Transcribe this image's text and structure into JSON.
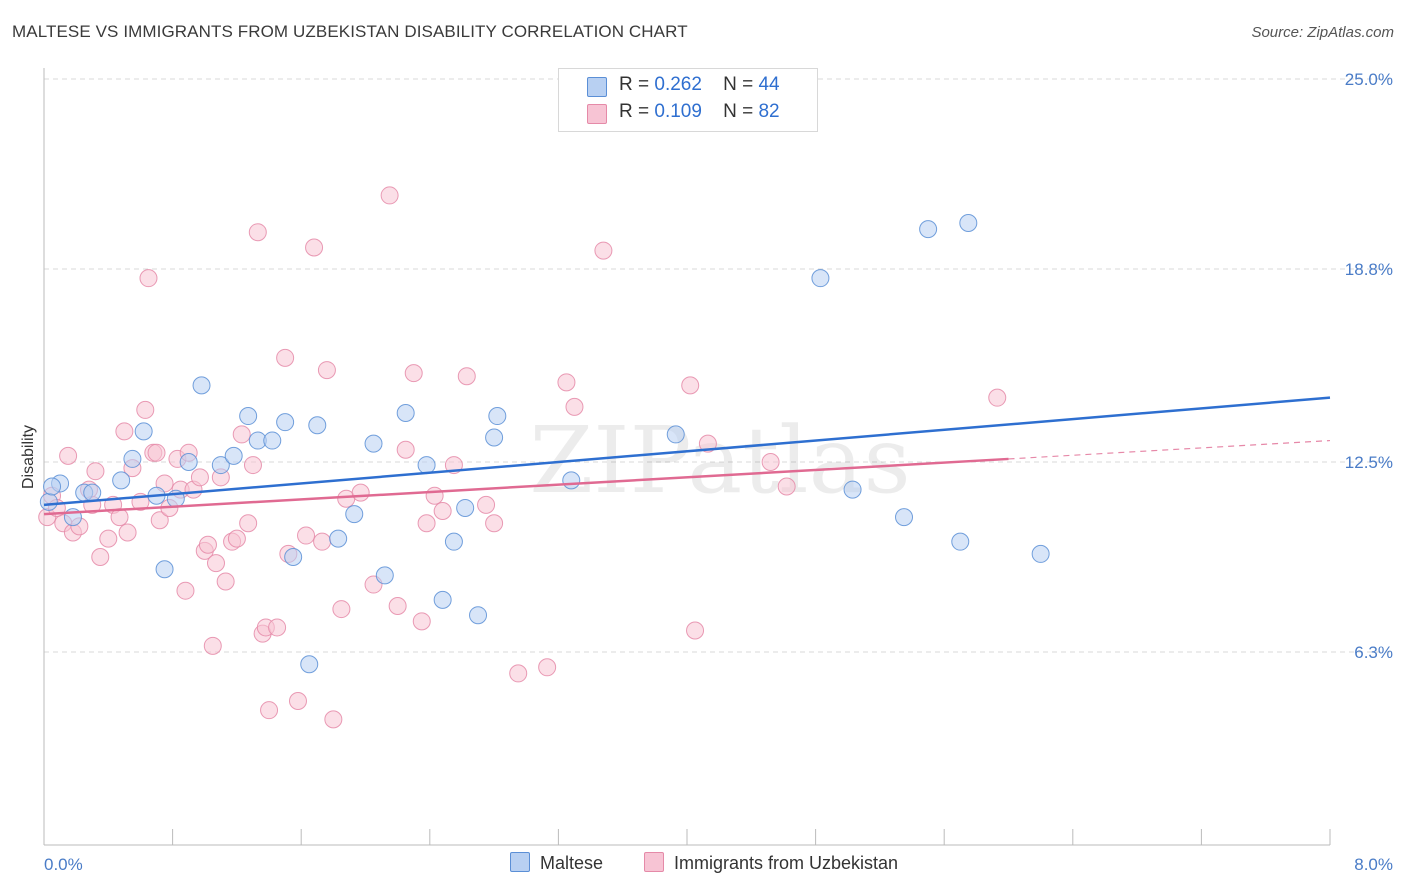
{
  "title": "MALTESE VS IMMIGRANTS FROM UZBEKISTAN DISABILITY CORRELATION CHART",
  "source": "Source: ZipAtlas.com",
  "legend": {
    "r_label": "R =",
    "n_label": "N =",
    "series": [
      {
        "r": "0.262",
        "n": "44"
      },
      {
        "r": "0.109",
        "n": "82"
      }
    ]
  },
  "bottom_legend": [
    "Maltese",
    "Immigrants from Uzbekistan"
  ],
  "watermark": "ZIPatlas",
  "colors": {
    "maltese_fill": "#b8d0f2",
    "maltese_stroke": "#5b8fd6",
    "maltese_line": "#2e6fd0",
    "uzbek_fill": "#f7c4d4",
    "uzbek_stroke": "#e58aa8",
    "uzbek_line": "#e06a92",
    "tick_text": "#4a7cc7",
    "grid": "#d9d9d9"
  },
  "chart_data": {
    "type": "scatter",
    "title": "MALTESE VS IMMIGRANTS FROM UZBEKISTAN DISABILITY CORRELATION CHART",
    "xlabel": "",
    "ylabel": "Disability",
    "xlim": [
      0.0,
      8.0
    ],
    "ylim": [
      0.0,
      25.0
    ],
    "x_tick_labels": [
      "0.0%",
      "8.0%"
    ],
    "y_ticks": [
      6.3,
      12.5,
      18.8,
      25.0
    ],
    "y_tick_labels": [
      "6.3%",
      "12.5%",
      "18.8%",
      "25.0%"
    ],
    "grid": true,
    "series": [
      {
        "name": "Maltese",
        "r": 0.262,
        "n": 44,
        "trend": {
          "x0": 0.0,
          "y0": 11.1,
          "x1": 8.0,
          "y1": 14.6
        },
        "points": [
          [
            0.03,
            11.2
          ],
          [
            0.1,
            11.8
          ],
          [
            0.18,
            10.7
          ],
          [
            0.25,
            11.5
          ],
          [
            0.3,
            11.5
          ],
          [
            0.48,
            11.9
          ],
          [
            0.55,
            12.6
          ],
          [
            0.62,
            13.5
          ],
          [
            0.7,
            11.4
          ],
          [
            0.75,
            9.0
          ],
          [
            0.82,
            11.3
          ],
          [
            0.9,
            12.5
          ],
          [
            0.98,
            15.0
          ],
          [
            1.1,
            12.4
          ],
          [
            1.18,
            12.7
          ],
          [
            1.27,
            14.0
          ],
          [
            1.33,
            13.2
          ],
          [
            1.42,
            13.2
          ],
          [
            1.5,
            13.8
          ],
          [
            1.55,
            9.4
          ],
          [
            1.65,
            5.9
          ],
          [
            1.7,
            13.7
          ],
          [
            1.83,
            10.0
          ],
          [
            1.93,
            10.8
          ],
          [
            2.05,
            13.1
          ],
          [
            2.12,
            8.8
          ],
          [
            2.25,
            14.1
          ],
          [
            2.38,
            12.4
          ],
          [
            2.48,
            8.0
          ],
          [
            2.55,
            9.9
          ],
          [
            2.62,
            11.0
          ],
          [
            2.7,
            7.5
          ],
          [
            2.8,
            13.3
          ],
          [
            2.82,
            14.0
          ],
          [
            3.28,
            11.9
          ],
          [
            3.93,
            13.4
          ],
          [
            4.83,
            18.5
          ],
          [
            5.03,
            11.6
          ],
          [
            5.35,
            10.7
          ],
          [
            5.5,
            20.1
          ],
          [
            5.7,
            9.9
          ],
          [
            5.75,
            20.3
          ],
          [
            6.2,
            9.5
          ],
          [
            0.05,
            11.7
          ]
        ]
      },
      {
        "name": "Immigrants from Uzbekistan",
        "r": 0.109,
        "n": 82,
        "trend": {
          "x0": 0.0,
          "y0": 10.8,
          "x1": 6.0,
          "y1": 12.6
        },
        "trend_dashed": {
          "x0": 6.0,
          "y0": 12.6,
          "x1": 8.0,
          "y1": 13.2
        },
        "points": [
          [
            0.02,
            10.7
          ],
          [
            0.05,
            11.4
          ],
          [
            0.12,
            10.5
          ],
          [
            0.15,
            12.7
          ],
          [
            0.18,
            10.2
          ],
          [
            0.22,
            10.4
          ],
          [
            0.28,
            11.6
          ],
          [
            0.3,
            11.1
          ],
          [
            0.32,
            12.2
          ],
          [
            0.35,
            9.4
          ],
          [
            0.4,
            10.0
          ],
          [
            0.43,
            11.1
          ],
          [
            0.47,
            10.7
          ],
          [
            0.5,
            13.5
          ],
          [
            0.52,
            10.2
          ],
          [
            0.55,
            12.3
          ],
          [
            0.6,
            11.2
          ],
          [
            0.63,
            14.2
          ],
          [
            0.65,
            18.5
          ],
          [
            0.68,
            12.8
          ],
          [
            0.72,
            10.6
          ],
          [
            0.75,
            11.8
          ],
          [
            0.78,
            11.0
          ],
          [
            0.83,
            12.6
          ],
          [
            0.85,
            11.6
          ],
          [
            0.88,
            8.3
          ],
          [
            0.9,
            12.8
          ],
          [
            0.93,
            11.6
          ],
          [
            0.97,
            12.0
          ],
          [
            1.0,
            9.6
          ],
          [
            1.02,
            9.8
          ],
          [
            1.05,
            6.5
          ],
          [
            1.07,
            9.2
          ],
          [
            1.1,
            12.0
          ],
          [
            1.13,
            8.6
          ],
          [
            1.17,
            9.9
          ],
          [
            1.2,
            10.0
          ],
          [
            1.23,
            13.4
          ],
          [
            1.27,
            10.5
          ],
          [
            1.3,
            12.4
          ],
          [
            1.33,
            20.0
          ],
          [
            1.36,
            6.9
          ],
          [
            1.38,
            7.1
          ],
          [
            1.4,
            4.4
          ],
          [
            1.45,
            7.1
          ],
          [
            1.5,
            15.9
          ],
          [
            1.52,
            9.5
          ],
          [
            1.58,
            4.7
          ],
          [
            1.63,
            10.1
          ],
          [
            1.68,
            19.5
          ],
          [
            1.73,
            9.9
          ],
          [
            1.76,
            15.5
          ],
          [
            1.8,
            4.1
          ],
          [
            1.85,
            7.7
          ],
          [
            1.88,
            11.3
          ],
          [
            1.97,
            11.5
          ],
          [
            2.05,
            8.5
          ],
          [
            2.15,
            21.2
          ],
          [
            2.2,
            7.8
          ],
          [
            2.25,
            12.9
          ],
          [
            2.3,
            15.4
          ],
          [
            2.35,
            7.3
          ],
          [
            2.38,
            10.5
          ],
          [
            2.43,
            11.4
          ],
          [
            2.48,
            10.9
          ],
          [
            2.55,
            12.4
          ],
          [
            2.63,
            15.3
          ],
          [
            2.75,
            11.1
          ],
          [
            2.8,
            10.5
          ],
          [
            2.95,
            5.6
          ],
          [
            3.13,
            5.8
          ],
          [
            3.25,
            15.1
          ],
          [
            3.3,
            14.3
          ],
          [
            3.48,
            19.4
          ],
          [
            4.02,
            15.0
          ],
          [
            4.05,
            7.0
          ],
          [
            4.13,
            13.1
          ],
          [
            4.52,
            12.5
          ],
          [
            4.62,
            11.7
          ],
          [
            5.93,
            14.6
          ],
          [
            0.7,
            12.8
          ],
          [
            0.08,
            11.0
          ]
        ]
      }
    ]
  }
}
